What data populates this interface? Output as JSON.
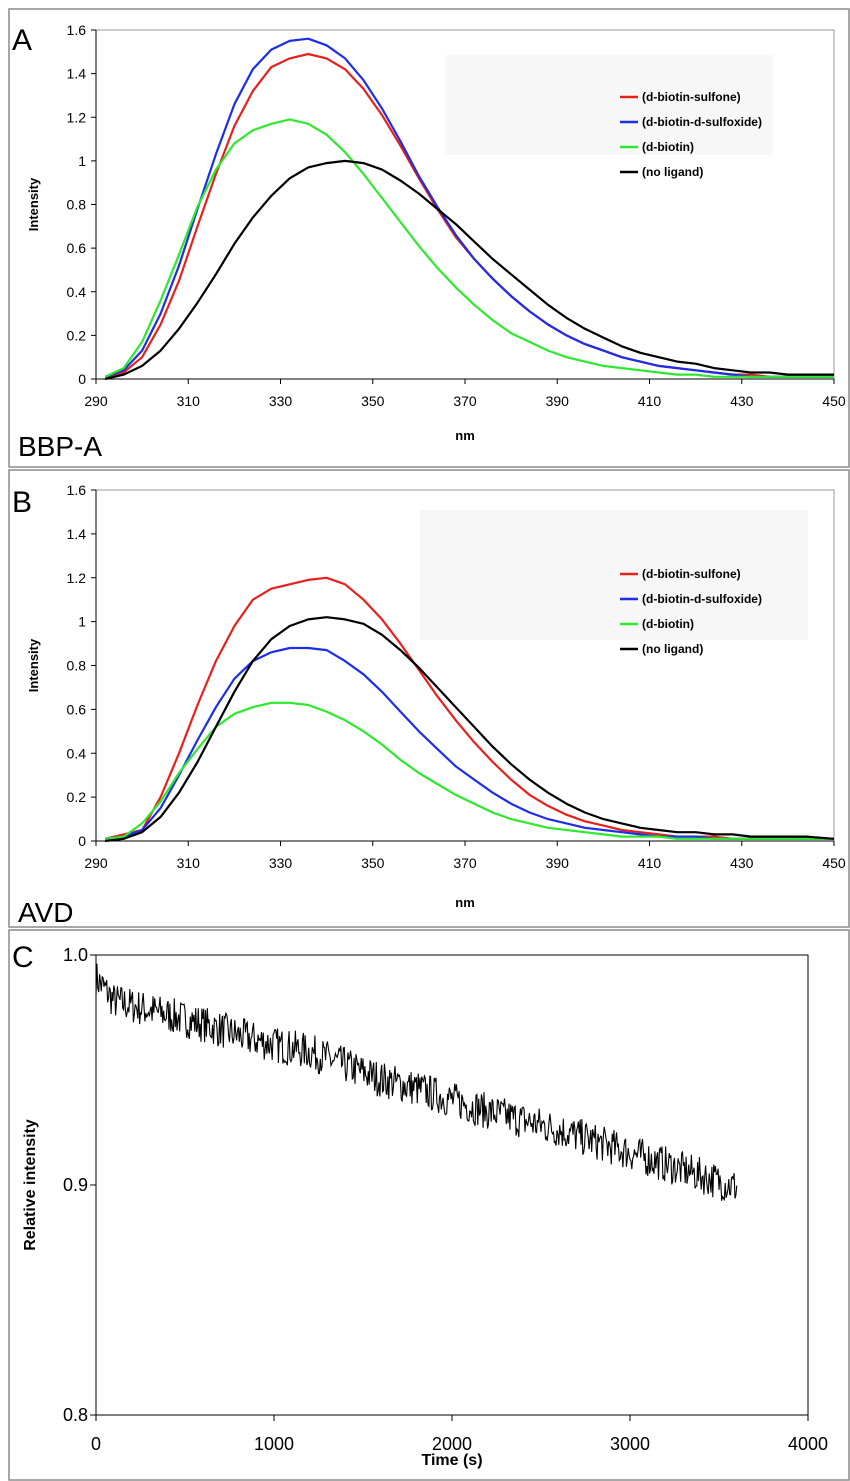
{
  "chart_data": [
    {
      "type": "line",
      "panel_label": "A",
      "name_label": "BBP-A",
      "xlabel": "nm",
      "ylabel": "Intensity",
      "xlim": [
        290,
        450
      ],
      "ylim": [
        0,
        1.6
      ],
      "x_ticks": [
        "290",
        "310",
        "330",
        "350",
        "370",
        "390",
        "410",
        "430",
        "450"
      ],
      "y_ticks": [
        "0",
        "0.2",
        "0.4",
        "0.6",
        "0.8",
        "1",
        "1.2",
        "1.4",
        "1.6"
      ],
      "legend_position": "top-right",
      "x": [
        292,
        296,
        300,
        304,
        308,
        312,
        316,
        320,
        324,
        328,
        332,
        336,
        340,
        344,
        348,
        352,
        356,
        360,
        364,
        368,
        372,
        376,
        380,
        384,
        388,
        392,
        396,
        400,
        404,
        408,
        412,
        416,
        420,
        424,
        428,
        432,
        436,
        440,
        444,
        450
      ],
      "series": [
        {
          "name": "(d-biotin-sulfone)",
          "color": "#e8201c",
          "values": [
            0.01,
            0.03,
            0.1,
            0.25,
            0.45,
            0.7,
            0.94,
            1.16,
            1.32,
            1.43,
            1.47,
            1.49,
            1.47,
            1.42,
            1.33,
            1.21,
            1.07,
            0.92,
            0.78,
            0.65,
            0.55,
            0.46,
            0.38,
            0.31,
            0.25,
            0.2,
            0.16,
            0.13,
            0.1,
            0.08,
            0.06,
            0.05,
            0.04,
            0.03,
            0.02,
            0.02,
            0.01,
            0.01,
            0.01,
            0.01
          ]
        },
        {
          "name": "(d-biotin-d-sulfoxide)",
          "color": "#1c2ee8",
          "values": [
            0.01,
            0.04,
            0.13,
            0.3,
            0.52,
            0.78,
            1.03,
            1.26,
            1.42,
            1.51,
            1.55,
            1.56,
            1.53,
            1.47,
            1.37,
            1.24,
            1.09,
            0.93,
            0.79,
            0.66,
            0.55,
            0.46,
            0.38,
            0.31,
            0.25,
            0.2,
            0.16,
            0.13,
            0.1,
            0.08,
            0.06,
            0.05,
            0.04,
            0.03,
            0.02,
            0.01,
            0.01,
            0.01,
            0.01,
            0.01
          ]
        },
        {
          "name": "(d-biotin)",
          "color": "#2ee82e",
          "values": [
            0.01,
            0.05,
            0.17,
            0.36,
            0.57,
            0.79,
            0.96,
            1.08,
            1.14,
            1.17,
            1.19,
            1.17,
            1.12,
            1.04,
            0.94,
            0.83,
            0.72,
            0.61,
            0.51,
            0.42,
            0.34,
            0.27,
            0.21,
            0.17,
            0.13,
            0.1,
            0.08,
            0.06,
            0.05,
            0.04,
            0.03,
            0.02,
            0.02,
            0.01,
            0.01,
            0.01,
            0.01,
            0.01,
            0.01,
            0.01
          ]
        },
        {
          "name": "(no ligand)",
          "color": "#000000",
          "values": [
            0.0,
            0.02,
            0.06,
            0.13,
            0.23,
            0.35,
            0.48,
            0.62,
            0.74,
            0.84,
            0.92,
            0.97,
            0.99,
            1.0,
            0.99,
            0.96,
            0.91,
            0.85,
            0.78,
            0.71,
            0.63,
            0.55,
            0.48,
            0.41,
            0.34,
            0.28,
            0.23,
            0.19,
            0.15,
            0.12,
            0.1,
            0.08,
            0.07,
            0.05,
            0.04,
            0.03,
            0.03,
            0.02,
            0.02,
            0.02
          ]
        }
      ]
    },
    {
      "type": "line",
      "panel_label": "B",
      "name_label": "AVD",
      "xlabel": "nm",
      "ylabel": "Intensity",
      "xlim": [
        290,
        450
      ],
      "ylim": [
        0,
        1.6
      ],
      "x_ticks": [
        "290",
        "310",
        "330",
        "350",
        "370",
        "390",
        "410",
        "430",
        "450"
      ],
      "y_ticks": [
        "0",
        "0.2",
        "0.4",
        "0.6",
        "0.8",
        "1",
        "1.2",
        "1.4",
        "1.6"
      ],
      "legend_position": "top-right",
      "x": [
        292,
        296,
        300,
        304,
        308,
        312,
        316,
        320,
        324,
        328,
        332,
        336,
        340,
        344,
        348,
        352,
        356,
        360,
        364,
        368,
        372,
        376,
        380,
        384,
        388,
        392,
        396,
        400,
        404,
        408,
        412,
        416,
        420,
        424,
        428,
        432,
        436,
        440,
        444,
        450
      ],
      "series": [
        {
          "name": "(d-biotin-sulfone)",
          "color": "#e8201c",
          "values": [
            0.01,
            0.03,
            0.05,
            0.2,
            0.4,
            0.62,
            0.82,
            0.98,
            1.1,
            1.15,
            1.17,
            1.19,
            1.2,
            1.17,
            1.1,
            1.01,
            0.9,
            0.78,
            0.66,
            0.55,
            0.45,
            0.36,
            0.28,
            0.21,
            0.16,
            0.12,
            0.09,
            0.07,
            0.05,
            0.04,
            0.03,
            0.02,
            0.02,
            0.02,
            0.01,
            0.01,
            0.01,
            0.01,
            0.01,
            0.01
          ]
        },
        {
          "name": "(d-biotin-d-sulfoxide)",
          "color": "#1c2ee8",
          "values": [
            0.01,
            0.02,
            0.05,
            0.15,
            0.3,
            0.46,
            0.61,
            0.74,
            0.82,
            0.86,
            0.88,
            0.88,
            0.87,
            0.82,
            0.76,
            0.68,
            0.59,
            0.5,
            0.42,
            0.34,
            0.28,
            0.22,
            0.17,
            0.13,
            0.1,
            0.08,
            0.06,
            0.05,
            0.04,
            0.03,
            0.02,
            0.02,
            0.02,
            0.01,
            0.01,
            0.01,
            0.01,
            0.01,
            0.01,
            0.01
          ]
        },
        {
          "name": "(d-biotin)",
          "color": "#2ee82e",
          "values": [
            0.01,
            0.02,
            0.08,
            0.18,
            0.31,
            0.42,
            0.52,
            0.58,
            0.61,
            0.63,
            0.63,
            0.62,
            0.59,
            0.55,
            0.5,
            0.44,
            0.37,
            0.31,
            0.26,
            0.21,
            0.17,
            0.13,
            0.1,
            0.08,
            0.06,
            0.05,
            0.04,
            0.03,
            0.02,
            0.02,
            0.02,
            0.01,
            0.01,
            0.01,
            0.01,
            0.01,
            0.01,
            0.01,
            0.01,
            0.01
          ]
        },
        {
          "name": "(no ligand)",
          "color": "#000000",
          "values": [
            0.0,
            0.01,
            0.04,
            0.11,
            0.22,
            0.36,
            0.52,
            0.68,
            0.82,
            0.92,
            0.98,
            1.01,
            1.02,
            1.01,
            0.99,
            0.94,
            0.87,
            0.79,
            0.7,
            0.61,
            0.52,
            0.43,
            0.35,
            0.28,
            0.22,
            0.17,
            0.13,
            0.1,
            0.08,
            0.06,
            0.05,
            0.04,
            0.04,
            0.03,
            0.03,
            0.02,
            0.02,
            0.02,
            0.02,
            0.01
          ]
        }
      ]
    },
    {
      "type": "line",
      "panel_label": "C",
      "xlabel": "Time (s)",
      "ylabel": "Relative intensity",
      "xlim": [
        0,
        4000
      ],
      "ylim": [
        0.8,
        1.0
      ],
      "x_ticks": [
        "0",
        "1000",
        "2000",
        "3000",
        "4000"
      ],
      "y_ticks": [
        "0.8",
        "0.9",
        "1.0"
      ],
      "series": [
        {
          "color": "#000000",
          "x": [
            0,
            100,
            200,
            400,
            600,
            800,
            1000,
            1200,
            1400,
            1600,
            1800,
            2000,
            2200,
            2400,
            2600,
            2800,
            3000,
            3200,
            3400,
            3600
          ],
          "values": [
            0.99,
            0.98,
            0.978,
            0.974,
            0.97,
            0.965,
            0.961,
            0.958,
            0.952,
            0.946,
            0.942,
            0.937,
            0.932,
            0.928,
            0.924,
            0.919,
            0.914,
            0.909,
            0.904,
            0.899
          ]
        }
      ]
    }
  ]
}
